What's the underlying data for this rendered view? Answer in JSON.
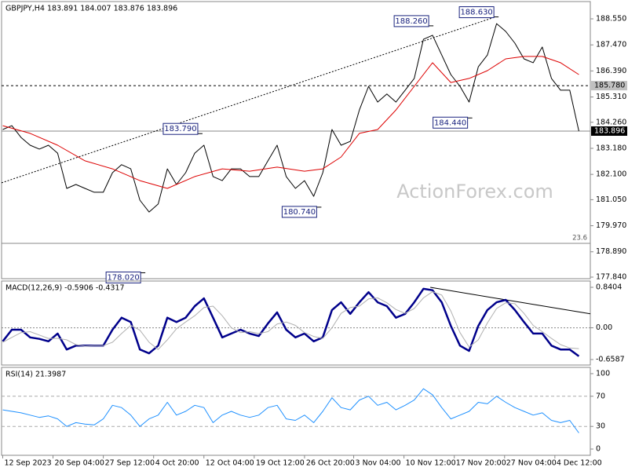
{
  "chart_data": [
    {
      "type": "line",
      "title": "GBPJPY,H4  183.891 184.007 183.876 183.896",
      "watermark": "ActionForex.com",
      "xlim": [
        -1,
        514
      ],
      "ylim": [
        177.775,
        189.266
      ],
      "yticks": [
        {
          "value": 188.55,
          "label": "188.550"
        },
        {
          "value": 187.47,
          "label": "187.470"
        },
        {
          "value": 186.39,
          "label": "186.390"
        },
        {
          "value": 185.31,
          "label": "185.310"
        },
        {
          "value": 184.26,
          "label": "184.260"
        },
        {
          "value": 183.18,
          "label": "183.180"
        },
        {
          "value": 182.1,
          "label": "182.100"
        },
        {
          "value": 181.05,
          "label": "181.050"
        },
        {
          "value": 179.97,
          "label": "179.970"
        },
        {
          "value": 178.89,
          "label": "178.890"
        },
        {
          "value": 177.84,
          "label": "177.840"
        }
      ],
      "x": [
        0,
        8,
        16,
        24,
        32,
        40,
        48,
        56,
        64,
        72,
        80,
        88,
        96,
        104,
        112,
        120,
        128,
        136,
        144,
        152,
        160,
        168,
        176,
        184,
        192,
        200,
        208,
        216,
        224,
        232,
        240,
        248,
        256,
        264,
        272,
        280,
        288,
        296,
        304,
        312,
        320,
        328,
        336,
        344,
        352,
        360,
        368,
        376,
        384,
        392,
        400,
        408,
        416,
        424,
        432,
        440,
        448,
        456,
        464,
        472,
        480,
        488,
        496,
        504
      ],
      "series": [
        {
          "color": "#000000",
          "values": [
            183.96,
            184.12,
            183.63,
            183.31,
            183.15,
            183.31,
            182.98,
            181.52,
            181.68,
            181.52,
            181.36,
            181.36,
            182.17,
            182.5,
            182.33,
            181.03,
            180.54,
            180.87,
            182.33,
            181.68,
            182.17,
            182.98,
            183.31,
            182.01,
            181.84,
            182.33,
            182.33,
            182.01,
            182.01,
            182.66,
            183.31,
            182.01,
            181.52,
            181.84,
            181.19,
            182.17,
            183.96,
            183.31,
            183.47,
            184.77,
            185.75,
            185.1,
            185.43,
            185.1,
            185.59,
            186.08,
            187.7,
            187.87,
            187.05,
            186.24,
            185.75,
            185.1,
            186.56,
            187.05,
            188.35,
            188.03,
            187.54,
            186.89,
            186.73,
            187.38,
            186.08,
            185.59,
            185.59,
            183.896
          ]
        },
        {
          "color": "#dd0000",
          "x": [
            0,
            24,
            48,
            72,
            96,
            120,
            144,
            168,
            192,
            216,
            240,
            264,
            280,
            296,
            312,
            328,
            344,
            360,
            376,
            392,
            408,
            424,
            440,
            456,
            472,
            488,
            504
          ],
          "values": [
            184.12,
            183.8,
            183.31,
            182.66,
            182.33,
            181.84,
            181.52,
            182.01,
            182.33,
            182.23,
            182.4,
            182.23,
            182.33,
            182.82,
            183.8,
            183.96,
            184.77,
            185.75,
            186.73,
            185.91,
            186.08,
            186.4,
            186.89,
            186.99,
            186.99,
            186.73,
            186.24
          ]
        }
      ],
      "trendline": {
        "x": [
          -1,
          431
        ],
        "values": [
          181.75,
          188.63
        ]
      },
      "annotations": [
        {
          "x": 431,
          "value": 188.63,
          "label": "188.630"
        },
        {
          "x": 374,
          "value": 188.26,
          "label": "188.260"
        },
        {
          "x": 172,
          "value": 183.79,
          "label": "183.790"
        },
        {
          "x": 408,
          "value": 184.44,
          "label": "184.440"
        },
        {
          "x": 276,
          "value": 180.74,
          "label": "180.740"
        },
        {
          "x": 122,
          "value": 178.02,
          "label": "178.020"
        }
      ],
      "levels": [
        {
          "value": 185.78,
          "label": "185.780",
          "style": "dashed",
          "axis_box": true
        },
        {
          "value": 183.896,
          "label": "183.896",
          "style": "solid",
          "axis_box": true
        },
        {
          "value": 179.24,
          "label": "23.6",
          "style": "solid",
          "axis_box": false
        }
      ]
    },
    {
      "type": "line",
      "title": "MACD(12,26,9) -0.5906 -0.4317",
      "xlim": [
        -1,
        514
      ],
      "ylim": [
        -0.773,
        0.971
      ],
      "yticks": [
        0.8404,
        {
          "value": 0,
          "label": "0.00"
        },
        -0.6587
      ],
      "x": [
        0,
        8,
        16,
        24,
        32,
        40,
        48,
        56,
        64,
        72,
        80,
        88,
        96,
        104,
        112,
        120,
        128,
        136,
        144,
        152,
        160,
        168,
        176,
        184,
        192,
        200,
        208,
        216,
        224,
        232,
        240,
        248,
        256,
        264,
        272,
        280,
        288,
        296,
        304,
        312,
        320,
        328,
        336,
        344,
        352,
        360,
        368,
        376,
        384,
        392,
        400,
        408,
        416,
        424,
        432,
        440,
        448,
        456,
        464,
        472,
        480,
        488,
        496,
        504
      ],
      "series": [
        {
          "color": "#00008b",
          "width": 2.5,
          "values": [
            -0.28,
            -0.04,
            -0.04,
            -0.2,
            -0.23,
            -0.28,
            -0.12,
            -0.45,
            -0.37,
            -0.37,
            -0.37,
            -0.37,
            -0.04,
            0.21,
            0.12,
            -0.45,
            -0.53,
            -0.37,
            0.21,
            0.12,
            0.21,
            0.45,
            0.61,
            0.21,
            -0.2,
            -0.12,
            -0.04,
            -0.12,
            -0.17,
            0.09,
            0.32,
            -0.04,
            -0.2,
            -0.12,
            -0.28,
            -0.2,
            0.37,
            0.53,
            0.29,
            0.53,
            0.74,
            0.53,
            0.45,
            0.21,
            0.29,
            0.53,
            0.81,
            0.78,
            0.53,
            0.04,
            -0.37,
            -0.48,
            0.04,
            0.37,
            0.53,
            0.58,
            0.37,
            0.12,
            -0.12,
            -0.12,
            -0.37,
            -0.45,
            -0.45,
            -0.5906
          ]
        },
        {
          "color": "#b0b0b0",
          "width": 1,
          "values": [
            -0.3,
            -0.2,
            -0.1,
            -0.08,
            -0.15,
            -0.22,
            -0.22,
            -0.25,
            -0.35,
            -0.38,
            -0.37,
            -0.37,
            -0.3,
            -0.12,
            0.05,
            -0.05,
            -0.3,
            -0.45,
            -0.25,
            -0.02,
            0.12,
            0.25,
            0.42,
            0.45,
            0.25,
            0,
            -0.1,
            -0.08,
            -0.12,
            -0.08,
            0.08,
            0.12,
            0.05,
            -0.1,
            -0.18,
            -0.22,
            0,
            0.3,
            0.42,
            0.45,
            0.6,
            0.62,
            0.52,
            0.38,
            0.3,
            0.4,
            0.62,
            0.75,
            0.68,
            0.35,
            -0.1,
            -0.4,
            -0.25,
            0.1,
            0.4,
            0.52,
            0.5,
            0.3,
            0.05,
            -0.08,
            -0.22,
            -0.35,
            -0.42,
            -0.4317
          ]
        }
      ],
      "zero_line": 0,
      "trendline": {
        "x": [
          374,
          514
        ],
        "values": [
          0.84,
          0.29
        ]
      }
    },
    {
      "type": "line",
      "title": "RSI(14) 21.3987",
      "xlim": [
        -1,
        514
      ],
      "ylim": [
        -8.3,
        108.3
      ],
      "yticks": [
        100,
        70,
        30,
        0
      ],
      "dashed_levels": [
        70,
        30
      ],
      "x": [
        0,
        8,
        16,
        24,
        32,
        40,
        48,
        56,
        64,
        72,
        80,
        88,
        96,
        104,
        112,
        120,
        128,
        136,
        144,
        152,
        160,
        168,
        176,
        184,
        192,
        200,
        208,
        216,
        224,
        232,
        240,
        248,
        256,
        264,
        272,
        280,
        288,
        296,
        304,
        312,
        320,
        328,
        336,
        344,
        352,
        360,
        368,
        376,
        384,
        392,
        400,
        408,
        416,
        424,
        432,
        440,
        448,
        456,
        464,
        472,
        480,
        488,
        496,
        504
      ],
      "series": [
        {
          "color": "#1e90ff",
          "width": 1,
          "values": [
            52,
            50,
            48,
            45,
            42,
            44,
            40,
            30,
            35,
            33,
            32,
            40,
            58,
            55,
            45,
            30,
            40,
            45,
            62,
            45,
            50,
            58,
            55,
            35,
            45,
            50,
            45,
            42,
            45,
            55,
            58,
            40,
            38,
            45,
            35,
            50,
            68,
            55,
            52,
            65,
            70,
            58,
            62,
            52,
            58,
            65,
            80,
            72,
            55,
            40,
            45,
            50,
            62,
            60,
            70,
            62,
            55,
            50,
            45,
            48,
            38,
            35,
            38,
            21.3987
          ]
        }
      ],
      "xticks": [
        {
          "value": 0,
          "label": "12 Sep 2023"
        },
        {
          "value": 44,
          "label": "20 Sep 04:00"
        },
        {
          "value": 88,
          "label": "27 Sep 12:00"
        },
        {
          "value": 132,
          "label": "4 Oct 20:00"
        },
        {
          "value": 176,
          "label": "12 Oct 04:00"
        },
        {
          "value": 220,
          "label": "19 Oct 12:00"
        },
        {
          "value": 264,
          "label": "26 Oct 20:00"
        },
        {
          "value": 307,
          "label": "3 Nov 04:00"
        },
        {
          "value": 351,
          "label": "10 Nov 12:00"
        },
        {
          "value": 395,
          "label": "17 Nov 20:00"
        },
        {
          "value": 439,
          "label": "27 Nov 04:00"
        },
        {
          "value": 483,
          "label": "4 Dec 12:00"
        }
      ]
    }
  ]
}
